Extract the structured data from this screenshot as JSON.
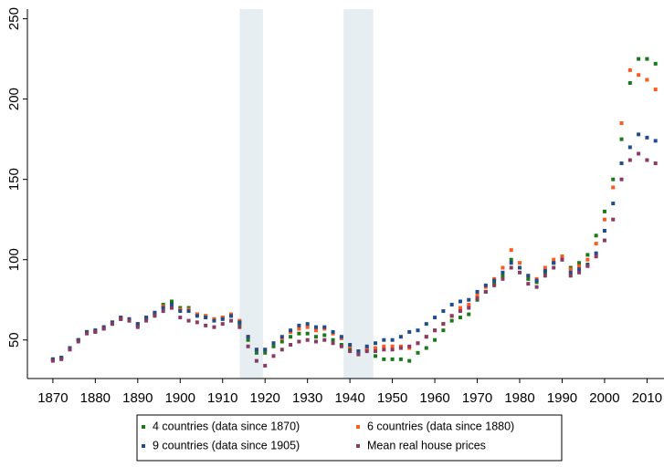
{
  "chart_data": {
    "type": "scatter",
    "x": [
      1870,
      1872,
      1874,
      1876,
      1878,
      1880,
      1882,
      1884,
      1886,
      1888,
      1890,
      1892,
      1894,
      1896,
      1898,
      1900,
      1902,
      1904,
      1906,
      1908,
      1910,
      1912,
      1914,
      1916,
      1918,
      1920,
      1922,
      1924,
      1926,
      1928,
      1930,
      1932,
      1934,
      1936,
      1938,
      1940,
      1942,
      1944,
      1946,
      1948,
      1950,
      1952,
      1954,
      1956,
      1958,
      1960,
      1962,
      1964,
      1966,
      1968,
      1970,
      1972,
      1974,
      1976,
      1978,
      1980,
      1982,
      1984,
      1986,
      1988,
      1990,
      1992,
      1994,
      1996,
      1998,
      2000,
      2002,
      2004,
      2006,
      2008,
      2010,
      2012
    ],
    "series": [
      {
        "name": "4 countries (data since 1870)",
        "color": "#1a7a1a",
        "values": [
          38,
          39,
          45,
          50,
          55,
          55,
          57,
          60,
          63,
          62,
          59,
          63,
          66,
          72,
          74,
          70,
          70,
          66,
          65,
          63,
          64,
          65,
          60,
          50,
          42,
          42,
          46,
          49,
          52,
          54,
          54,
          52,
          53,
          50,
          47,
          44,
          42,
          44,
          40,
          38,
          38,
          38,
          37,
          42,
          45,
          50,
          56,
          62,
          64,
          66,
          75,
          80,
          85,
          90,
          100,
          95,
          88,
          86,
          92,
          98,
          102,
          95,
          98,
          103,
          115,
          130,
          150,
          175,
          210,
          225,
          225,
          222
        ]
      },
      {
        "name": "6 countries (data since 1880)",
        "color": "#ff5a1e",
        "values": [
          38,
          39,
          45,
          50,
          55,
          56,
          58,
          61,
          64,
          63,
          60,
          64,
          67,
          71,
          72,
          69,
          69,
          66,
          65,
          63,
          64,
          66,
          62,
          52,
          44,
          44,
          48,
          51,
          55,
          57,
          58,
          56,
          57,
          54,
          51,
          46,
          43,
          45,
          45,
          46,
          46,
          46,
          45,
          48,
          52,
          56,
          60,
          65,
          70,
          72,
          78,
          83,
          88,
          95,
          106,
          98,
          90,
          88,
          95,
          100,
          102,
          94,
          96,
          100,
          110,
          125,
          145,
          185,
          218,
          215,
          212,
          206
        ]
      },
      {
        "name": "9 countries (data since 1905)",
        "color": "#1f4e8c",
        "values": [
          38,
          39,
          45,
          50,
          55,
          56,
          58,
          61,
          64,
          63,
          60,
          64,
          67,
          70,
          72,
          68,
          68,
          65,
          64,
          62,
          63,
          65,
          61,
          52,
          44,
          44,
          48,
          52,
          56,
          59,
          60,
          58,
          58,
          55,
          52,
          47,
          43,
          46,
          48,
          50,
          50,
          52,
          55,
          56,
          60,
          64,
          68,
          72,
          74,
          75,
          80,
          84,
          87,
          92,
          98,
          95,
          90,
          87,
          93,
          98,
          100,
          92,
          94,
          97,
          104,
          118,
          135,
          160,
          170,
          178,
          176,
          174
        ]
      },
      {
        "name": "Mean real house prices",
        "color": "#8b3a62",
        "values": [
          37,
          38,
          44,
          49,
          54,
          55,
          57,
          60,
          63,
          62,
          58,
          62,
          65,
          68,
          70,
          64,
          62,
          61,
          59,
          58,
          60,
          62,
          58,
          46,
          37,
          34,
          40,
          44,
          47,
          49,
          50,
          49,
          50,
          48,
          46,
          43,
          41,
          43,
          43,
          44,
          44,
          45,
          46,
          48,
          52,
          56,
          60,
          65,
          68,
          70,
          76,
          80,
          84,
          88,
          95,
          92,
          85,
          83,
          90,
          95,
          100,
          90,
          92,
          96,
          102,
          112,
          125,
          150,
          162,
          166,
          162,
          160
        ]
      }
    ],
    "shaded_periods": [
      [
        1914,
        1919.5
      ],
      [
        1938.5,
        1945.5
      ]
    ],
    "xlim": [
      1864,
      2014
    ],
    "ylim": [
      26,
      256
    ],
    "xticks": [
      1870,
      1880,
      1890,
      1900,
      1910,
      1920,
      1930,
      1940,
      1950,
      1960,
      1970,
      1980,
      1990,
      2000,
      2010
    ],
    "yticks": [
      50,
      100,
      150,
      200,
      250
    ],
    "legend": "bottom"
  }
}
